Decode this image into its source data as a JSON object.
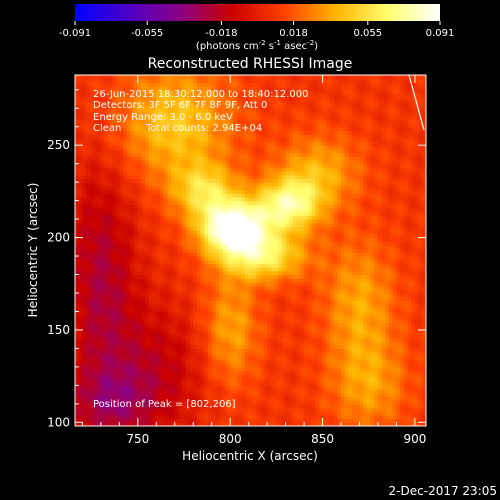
{
  "chart_data": {
    "type": "heatmap",
    "title": "Reconstructed RHESSI Image",
    "xlabel": "Heliocentric X (arcsec)",
    "ylabel": "Heliocentric Y (arcsec)",
    "xlim": [
      716,
      906
    ],
    "ylim": [
      98,
      288
    ],
    "x_ticks": [
      750,
      800,
      850,
      900
    ],
    "y_ticks": [
      100,
      150,
      200,
      250
    ],
    "colorbar": {
      "min": -0.091,
      "max": 0.091,
      "ticks": [
        "-0.091",
        "-0.055",
        "-0.018",
        "0.018",
        "0.055",
        "0.091"
      ],
      "tick_values": [
        -0.091,
        -0.055,
        -0.018,
        0.018,
        0.055,
        0.091
      ],
      "units_label": "(photons cm-2 s-1 asec-2)",
      "colormap": [
        "#0000ff",
        "#4b00c8",
        "#8a0088",
        "#c80000",
        "#ff4000",
        "#ffb400",
        "#ffff70",
        "#ffffff"
      ]
    },
    "annotations": {
      "time_range": "26-Jun-2015 18:30:12.000 to 18:40:12.000",
      "detectors": "Detectors: 3F 5F 6F 7F 8F 9F, Att 0",
      "energy_range": "Energy Range: 3.0 - 6.0 keV",
      "clean": "Clean",
      "total_counts": "Total counts: 2.94E+04",
      "peak": "Position of Peak = [802,206]"
    },
    "peak": [
      802,
      206
    ],
    "components": [
      {
        "x": 802,
        "y": 206,
        "amp": 0.091,
        "sx": 13,
        "sy": 10
      },
      {
        "x": 832,
        "y": 218,
        "amp": 0.06,
        "sx": 12,
        "sy": 10
      },
      {
        "x": 818,
        "y": 190,
        "amp": 0.05,
        "sx": 16,
        "sy": 9
      },
      {
        "x": 786,
        "y": 226,
        "amp": 0.04,
        "sx": 12,
        "sy": 10
      },
      {
        "x": 770,
        "y": 262,
        "amp": 0.038,
        "sx": 22,
        "sy": 22
      },
      {
        "x": 848,
        "y": 236,
        "amp": 0.03,
        "sx": 16,
        "sy": 14
      },
      {
        "x": 800,
        "y": 150,
        "amp": 0.03,
        "sx": 11,
        "sy": 22
      },
      {
        "x": 870,
        "y": 165,
        "amp": 0.028,
        "sx": 14,
        "sy": 24
      },
      {
        "x": 875,
        "y": 120,
        "amp": 0.025,
        "sx": 15,
        "sy": 18
      },
      {
        "x": 760,
        "y": 130,
        "amp": -0.022,
        "sx": 22,
        "sy": 26
      },
      {
        "x": 730,
        "y": 180,
        "amp": -0.03,
        "sx": 14,
        "sy": 45
      },
      {
        "x": 735,
        "y": 110,
        "amp": -0.025,
        "sx": 18,
        "sy": 14
      }
    ],
    "background": 0.008
  },
  "footer": {
    "date": "2-Dec-2017 23:05"
  }
}
